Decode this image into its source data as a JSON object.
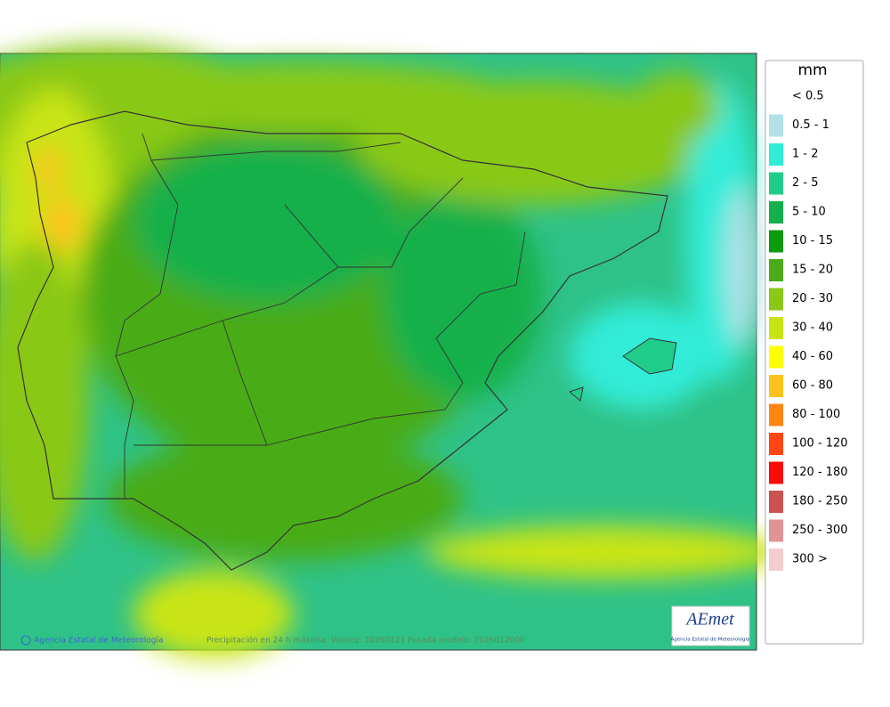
{
  "footer": {
    "credit": "Agencia Estatal de Meteorología",
    "caption": "Precipitación en 24 h máxima. Validez: 20260121 Pasada modelo: 2026012000"
  },
  "logo": {
    "name": "AEmet",
    "subtitle": "Agencia Estatal de Meteorología"
  },
  "legend": {
    "title": "mm",
    "items": [
      {
        "label": "< 0.5",
        "color": "#ffffff"
      },
      {
        "label": "0.5 - 1",
        "color": "#b3e0e6"
      },
      {
        "label": "1 - 2",
        "color": "#30ecd8"
      },
      {
        "label": "2 - 5",
        "color": "#1fcc8a"
      },
      {
        "label": "5 - 10",
        "color": "#14b04c"
      },
      {
        "label": "10 - 15",
        "color": "#0c9a0e"
      },
      {
        "label": "15 - 20",
        "color": "#4aac16"
      },
      {
        "label": "20 - 30",
        "color": "#8ac818"
      },
      {
        "label": "30 - 40",
        "color": "#c8e414"
      },
      {
        "label": "40 - 60",
        "color": "#ffff00"
      },
      {
        "label": "60 - 80",
        "color": "#ffc21a"
      },
      {
        "label": "80 - 100",
        "color": "#ff8412"
      },
      {
        "label": "100 - 120",
        "color": "#ff4612"
      },
      {
        "label": "120 - 180",
        "color": "#ff0808"
      },
      {
        "label": "180 - 250",
        "color": "#cc5252"
      },
      {
        "label": "250 - 300",
        "color": "#e09494"
      },
      {
        "label": "300 >",
        "color": "#f4cccc"
      }
    ]
  }
}
